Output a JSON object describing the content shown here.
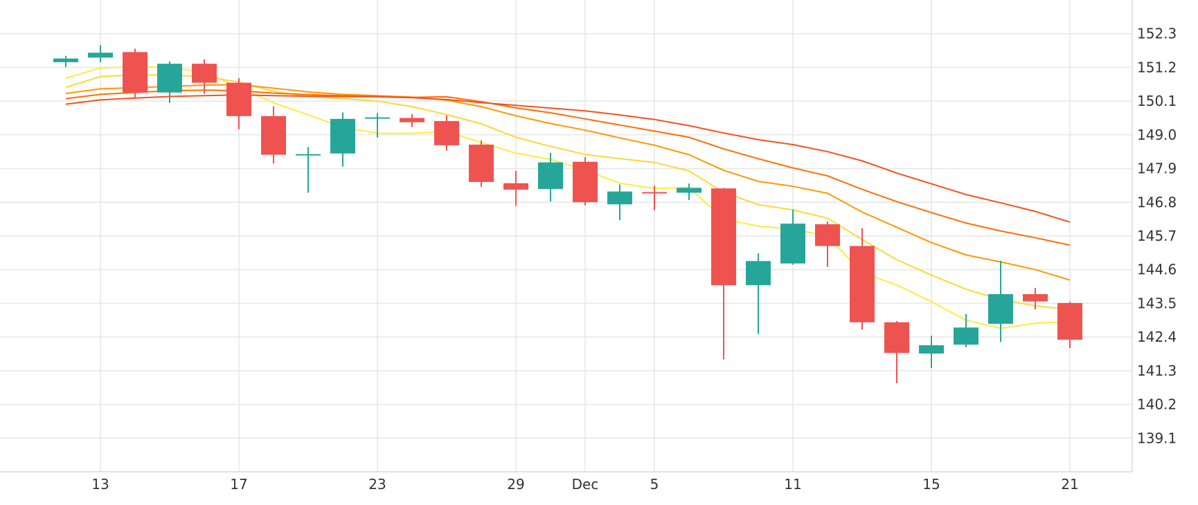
{
  "chart_data": {
    "type": "candlestick",
    "x_tick_labels": [
      {
        "day": 1,
        "label": "13"
      },
      {
        "day": 5,
        "label": "17"
      },
      {
        "day": 9,
        "label": "23"
      },
      {
        "day": 13,
        "label": "29"
      },
      {
        "day": 15,
        "label": "Dec"
      },
      {
        "day": 17,
        "label": "5"
      },
      {
        "day": 21,
        "label": "11"
      },
      {
        "day": 25,
        "label": "15"
      },
      {
        "day": 29,
        "label": "21"
      }
    ],
    "y_ticks": [
      "152.3",
      "151.2",
      "150.1",
      "149.0",
      "147.9",
      "146.8",
      "145.7",
      "144.6",
      "143.5",
      "142.4",
      "141.3",
      "140.2",
      "139.1"
    ],
    "ylim": [
      138.0,
      153.4
    ],
    "xlim": [
      -1.9,
      30.8
    ],
    "colors": {
      "up": "#26a69a",
      "down": "#ef5350",
      "grid": "#e6e6e6"
    },
    "candles": [
      {
        "day": 0,
        "open": 151.37,
        "high": 151.58,
        "low": 151.21,
        "close": 151.49
      },
      {
        "day": 1,
        "open": 151.52,
        "high": 151.93,
        "low": 151.37,
        "close": 151.68
      },
      {
        "day": 2,
        "open": 151.7,
        "high": 151.81,
        "low": 150.18,
        "close": 150.38
      },
      {
        "day": 3,
        "open": 150.38,
        "high": 151.4,
        "low": 150.04,
        "close": 151.32
      },
      {
        "day": 4,
        "open": 151.32,
        "high": 151.46,
        "low": 150.34,
        "close": 150.7
      },
      {
        "day": 5,
        "open": 150.7,
        "high": 150.85,
        "low": 149.18,
        "close": 149.61
      },
      {
        "day": 6,
        "open": 149.61,
        "high": 149.93,
        "low": 148.06,
        "close": 148.35
      },
      {
        "day": 7,
        "open": 148.37,
        "high": 148.6,
        "low": 147.11,
        "close": 148.37
      },
      {
        "day": 8,
        "open": 148.39,
        "high": 149.73,
        "low": 147.96,
        "close": 149.52
      },
      {
        "day": 9,
        "open": 149.57,
        "high": 149.71,
        "low": 148.91,
        "close": 149.57
      },
      {
        "day": 10,
        "open": 149.55,
        "high": 149.67,
        "low": 149.25,
        "close": 149.41
      },
      {
        "day": 11,
        "open": 149.45,
        "high": 149.63,
        "low": 148.49,
        "close": 148.66
      },
      {
        "day": 12,
        "open": 148.68,
        "high": 148.82,
        "low": 147.3,
        "close": 147.46
      },
      {
        "day": 13,
        "open": 147.42,
        "high": 147.82,
        "low": 146.68,
        "close": 147.21
      },
      {
        "day": 14,
        "open": 147.23,
        "high": 148.41,
        "low": 146.82,
        "close": 148.1
      },
      {
        "day": 15,
        "open": 148.12,
        "high": 148.27,
        "low": 146.7,
        "close": 146.8
      },
      {
        "day": 16,
        "open": 146.73,
        "high": 147.38,
        "low": 146.21,
        "close": 147.15
      },
      {
        "day": 17,
        "open": 147.13,
        "high": 147.34,
        "low": 146.54,
        "close": 147.11
      },
      {
        "day": 18,
        "open": 147.11,
        "high": 147.41,
        "low": 146.87,
        "close": 147.27
      },
      {
        "day": 19,
        "open": 147.25,
        "high": 147.27,
        "low": 141.67,
        "close": 144.09
      },
      {
        "day": 20,
        "open": 144.09,
        "high": 145.13,
        "low": 142.5,
        "close": 144.88
      },
      {
        "day": 21,
        "open": 144.8,
        "high": 146.56,
        "low": 144.76,
        "close": 146.1
      },
      {
        "day": 22,
        "open": 146.08,
        "high": 146.17,
        "low": 144.69,
        "close": 145.37
      },
      {
        "day": 23,
        "open": 145.37,
        "high": 145.95,
        "low": 142.64,
        "close": 142.88
      },
      {
        "day": 24,
        "open": 142.88,
        "high": 142.92,
        "low": 140.89,
        "close": 141.88
      },
      {
        "day": 25,
        "open": 141.86,
        "high": 142.44,
        "low": 141.39,
        "close": 142.13
      },
      {
        "day": 26,
        "open": 142.15,
        "high": 143.15,
        "low": 142.07,
        "close": 142.71
      },
      {
        "day": 27,
        "open": 142.83,
        "high": 144.89,
        "low": 142.24,
        "close": 143.8
      },
      {
        "day": 28,
        "open": 143.8,
        "high": 144.0,
        "low": 143.3,
        "close": 143.56
      },
      {
        "day": 29,
        "open": 143.51,
        "high": 143.55,
        "low": 142.04,
        "close": 142.31
      }
    ],
    "moving_averages": [
      {
        "color": "#ffeb3b",
        "points": [
          [
            0,
            150.85
          ],
          [
            1,
            151.18
          ],
          [
            2,
            151.22
          ],
          [
            3,
            151.2
          ],
          [
            4,
            151.05
          ],
          [
            5,
            150.55
          ],
          [
            6,
            150.05
          ],
          [
            7,
            149.65
          ],
          [
            8,
            149.25
          ],
          [
            9,
            149.05
          ],
          [
            10,
            149.05
          ],
          [
            11,
            149.1
          ],
          [
            12,
            148.75
          ],
          [
            13,
            148.4
          ],
          [
            14,
            148.2
          ],
          [
            15,
            147.85
          ],
          [
            16,
            147.42
          ],
          [
            17,
            147.25
          ],
          [
            18,
            147.28
          ],
          [
            19,
            146.25
          ],
          [
            20,
            146.02
          ],
          [
            21,
            145.92
          ],
          [
            22,
            145.7
          ],
          [
            23,
            144.5
          ],
          [
            24,
            144.1
          ],
          [
            25,
            143.55
          ],
          [
            26,
            142.95
          ],
          [
            27,
            142.68
          ],
          [
            28,
            142.85
          ],
          [
            29,
            142.9
          ]
        ]
      },
      {
        "color": "#fdd835",
        "points": [
          [
            0,
            150.55
          ],
          [
            1,
            150.9
          ],
          [
            2,
            150.96
          ],
          [
            3,
            150.95
          ],
          [
            4,
            150.9
          ],
          [
            5,
            150.72
          ],
          [
            6,
            150.42
          ],
          [
            7,
            150.25
          ],
          [
            8,
            150.18
          ],
          [
            9,
            150.1
          ],
          [
            10,
            149.92
          ],
          [
            11,
            149.66
          ],
          [
            12,
            149.36
          ],
          [
            13,
            148.92
          ],
          [
            14,
            148.62
          ],
          [
            15,
            148.36
          ],
          [
            16,
            148.22
          ],
          [
            17,
            148.1
          ],
          [
            18,
            147.82
          ],
          [
            19,
            147.12
          ],
          [
            20,
            146.72
          ],
          [
            21,
            146.55
          ],
          [
            22,
            146.28
          ],
          [
            23,
            145.58
          ],
          [
            24,
            144.92
          ],
          [
            25,
            144.42
          ],
          [
            26,
            143.96
          ],
          [
            27,
            143.62
          ],
          [
            28,
            143.42
          ],
          [
            29,
            143.29
          ]
        ]
      },
      {
        "color": "#ff9800",
        "points": [
          [
            0,
            150.35
          ],
          [
            1,
            150.5
          ],
          [
            2,
            150.54
          ],
          [
            3,
            150.58
          ],
          [
            4,
            150.62
          ],
          [
            5,
            150.64
          ],
          [
            6,
            150.52
          ],
          [
            7,
            150.4
          ],
          [
            8,
            150.32
          ],
          [
            9,
            150.28
          ],
          [
            10,
            150.23
          ],
          [
            11,
            150.13
          ],
          [
            12,
            149.92
          ],
          [
            13,
            149.62
          ],
          [
            14,
            149.37
          ],
          [
            15,
            149.15
          ],
          [
            16,
            148.9
          ],
          [
            17,
            148.66
          ],
          [
            18,
            148.35
          ],
          [
            19,
            147.84
          ],
          [
            20,
            147.48
          ],
          [
            21,
            147.32
          ],
          [
            22,
            147.09
          ],
          [
            23,
            146.48
          ],
          [
            24,
            145.98
          ],
          [
            25,
            145.48
          ],
          [
            26,
            145.08
          ],
          [
            27,
            144.85
          ],
          [
            28,
            144.6
          ],
          [
            29,
            144.26
          ]
        ]
      },
      {
        "color": "#ff6d00",
        "points": [
          [
            0,
            150.18
          ],
          [
            1,
            150.32
          ],
          [
            2,
            150.38
          ],
          [
            3,
            150.44
          ],
          [
            4,
            150.46
          ],
          [
            5,
            150.44
          ],
          [
            6,
            150.36
          ],
          [
            7,
            150.31
          ],
          [
            8,
            150.28
          ],
          [
            9,
            150.25
          ],
          [
            10,
            150.22
          ],
          [
            11,
            150.24
          ],
          [
            12,
            150.08
          ],
          [
            13,
            149.88
          ],
          [
            14,
            149.72
          ],
          [
            15,
            149.52
          ],
          [
            16,
            149.32
          ],
          [
            17,
            149.12
          ],
          [
            18,
            148.92
          ],
          [
            19,
            148.54
          ],
          [
            20,
            148.22
          ],
          [
            21,
            147.92
          ],
          [
            22,
            147.66
          ],
          [
            23,
            147.22
          ],
          [
            24,
            146.82
          ],
          [
            25,
            146.46
          ],
          [
            26,
            146.12
          ],
          [
            27,
            145.86
          ],
          [
            28,
            145.64
          ],
          [
            29,
            145.4
          ]
        ]
      },
      {
        "color": "#f4511e",
        "points": [
          [
            0,
            150.0
          ],
          [
            1,
            150.14
          ],
          [
            2,
            150.2
          ],
          [
            3,
            150.25
          ],
          [
            4,
            150.28
          ],
          [
            5,
            150.3
          ],
          [
            6,
            150.28
          ],
          [
            7,
            150.26
          ],
          [
            8,
            150.25
          ],
          [
            9,
            150.24
          ],
          [
            10,
            150.21
          ],
          [
            11,
            150.15
          ],
          [
            12,
            150.05
          ],
          [
            13,
            149.96
          ],
          [
            14,
            149.87
          ],
          [
            15,
            149.78
          ],
          [
            16,
            149.65
          ],
          [
            17,
            149.5
          ],
          [
            18,
            149.3
          ],
          [
            19,
            149.06
          ],
          [
            20,
            148.84
          ],
          [
            21,
            148.68
          ],
          [
            22,
            148.45
          ],
          [
            23,
            148.15
          ],
          [
            24,
            147.75
          ],
          [
            25,
            147.4
          ],
          [
            26,
            147.05
          ],
          [
            27,
            146.78
          ],
          [
            28,
            146.5
          ],
          [
            29,
            146.15
          ]
        ]
      }
    ]
  }
}
